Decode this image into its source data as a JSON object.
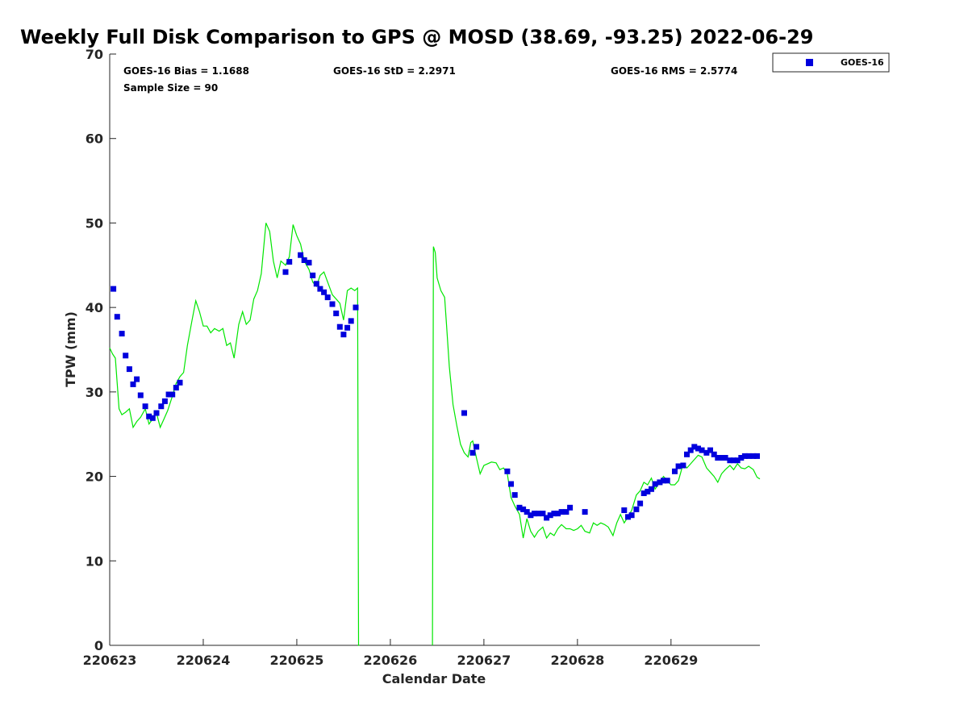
{
  "chart_data": {
    "type": "scatter",
    "title": "Weekly Full Disk Comparison to GPS @ MOSD (38.69, -93.25) 2022-06-29",
    "xlabel": "Calendar Date",
    "ylabel": "TPW (mm)",
    "xlim": [
      0,
      6.95
    ],
    "ylim": [
      0,
      70
    ],
    "x_ticks": [
      {
        "value": 0,
        "label": "220623"
      },
      {
        "value": 1,
        "label": "220624"
      },
      {
        "value": 2,
        "label": "220625"
      },
      {
        "value": 3,
        "label": "220626"
      },
      {
        "value": 4,
        "label": "220627"
      },
      {
        "value": 5,
        "label": "220628"
      },
      {
        "value": 6,
        "label": "220629"
      }
    ],
    "y_ticks": [
      0,
      10,
      20,
      30,
      40,
      50,
      60,
      70
    ],
    "x_units": "days since 220623",
    "grid": false,
    "legend_position": "top-right-outside",
    "stats": {
      "bias": "GOES-16 Bias = 1.1688",
      "std": "GOES-16 StD = 2.2971",
      "rms": "GOES-16 RMS = 2.5774",
      "sample": "Sample Size = 90"
    },
    "series": [
      {
        "name": "GOES-16",
        "kind": "scatter",
        "color": "#0000dd",
        "points": [
          [
            0.04,
            42.2
          ],
          [
            0.08,
            38.9
          ],
          [
            0.13,
            36.9
          ],
          [
            0.17,
            34.3
          ],
          [
            0.21,
            32.7
          ],
          [
            0.25,
            30.9
          ],
          [
            0.29,
            31.5
          ],
          [
            0.33,
            29.6
          ],
          [
            0.38,
            28.3
          ],
          [
            0.42,
            27.1
          ],
          [
            0.46,
            26.9
          ],
          [
            0.5,
            27.5
          ],
          [
            0.55,
            28.3
          ],
          [
            0.59,
            28.9
          ],
          [
            0.63,
            29.7
          ],
          [
            0.67,
            29.7
          ],
          [
            0.71,
            30.5
          ],
          [
            0.75,
            31.1
          ],
          [
            1.88,
            44.2
          ],
          [
            1.92,
            45.4
          ],
          [
            2.04,
            46.2
          ],
          [
            2.08,
            45.6
          ],
          [
            2.13,
            45.3
          ],
          [
            2.17,
            43.8
          ],
          [
            2.21,
            42.8
          ],
          [
            2.25,
            42.2
          ],
          [
            2.29,
            41.8
          ],
          [
            2.33,
            41.2
          ],
          [
            2.38,
            40.4
          ],
          [
            2.42,
            39.3
          ],
          [
            2.46,
            37.7
          ],
          [
            2.5,
            36.8
          ],
          [
            2.54,
            37.6
          ],
          [
            2.58,
            38.4
          ],
          [
            2.63,
            40.0
          ],
          [
            3.79,
            27.5
          ],
          [
            3.88,
            22.8
          ],
          [
            3.92,
            23.5
          ],
          [
            4.25,
            20.6
          ],
          [
            4.29,
            19.1
          ],
          [
            4.33,
            17.8
          ],
          [
            4.38,
            16.3
          ],
          [
            4.42,
            16.1
          ],
          [
            4.46,
            15.8
          ],
          [
            4.5,
            15.4
          ],
          [
            4.54,
            15.6
          ],
          [
            4.58,
            15.6
          ],
          [
            4.63,
            15.6
          ],
          [
            4.67,
            15.1
          ],
          [
            4.71,
            15.4
          ],
          [
            4.75,
            15.6
          ],
          [
            4.79,
            15.6
          ],
          [
            4.83,
            15.8
          ],
          [
            4.88,
            15.8
          ],
          [
            4.92,
            16.3
          ],
          [
            5.08,
            15.8
          ],
          [
            5.5,
            16.0
          ],
          [
            5.54,
            15.2
          ],
          [
            5.58,
            15.4
          ],
          [
            5.63,
            16.1
          ],
          [
            5.67,
            16.8
          ],
          [
            5.71,
            18.0
          ],
          [
            5.75,
            18.2
          ],
          [
            5.79,
            18.5
          ],
          [
            5.83,
            19.1
          ],
          [
            5.88,
            19.3
          ],
          [
            5.92,
            19.5
          ],
          [
            5.96,
            19.5
          ],
          [
            6.04,
            20.6
          ],
          [
            6.08,
            21.2
          ],
          [
            6.13,
            21.3
          ],
          [
            6.17,
            22.6
          ],
          [
            6.21,
            23.1
          ],
          [
            6.25,
            23.5
          ],
          [
            6.29,
            23.3
          ],
          [
            6.33,
            23.1
          ],
          [
            6.38,
            22.8
          ],
          [
            6.42,
            23.1
          ],
          [
            6.46,
            22.6
          ],
          [
            6.5,
            22.2
          ],
          [
            6.54,
            22.2
          ],
          [
            6.58,
            22.2
          ],
          [
            6.63,
            21.9
          ],
          [
            6.67,
            21.9
          ],
          [
            6.71,
            21.9
          ],
          [
            6.75,
            22.2
          ],
          [
            6.79,
            22.4
          ],
          [
            6.83,
            22.4
          ],
          [
            6.88,
            22.4
          ],
          [
            6.92,
            22.4
          ]
        ]
      },
      {
        "name": "",
        "kind": "line",
        "color": "#00e600",
        "points": [
          [
            0.0,
            35.2
          ],
          [
            0.03,
            34.5
          ],
          [
            0.06,
            34.0
          ],
          [
            0.08,
            31.0
          ],
          [
            0.1,
            28.0
          ],
          [
            0.13,
            27.3
          ],
          [
            0.17,
            27.6
          ],
          [
            0.21,
            28.0
          ],
          [
            0.25,
            25.8
          ],
          [
            0.29,
            26.5
          ],
          [
            0.33,
            27.0
          ],
          [
            0.38,
            28.0
          ],
          [
            0.42,
            26.2
          ],
          [
            0.46,
            26.8
          ],
          [
            0.5,
            27.5
          ],
          [
            0.54,
            25.8
          ],
          [
            0.58,
            26.8
          ],
          [
            0.62,
            27.8
          ],
          [
            0.67,
            29.5
          ],
          [
            0.71,
            31.0
          ],
          [
            0.75,
            31.8
          ],
          [
            0.79,
            32.3
          ],
          [
            0.83,
            35.5
          ],
          [
            0.88,
            38.5
          ],
          [
            0.92,
            40.8
          ],
          [
            0.96,
            39.5
          ],
          [
            1.0,
            37.8
          ],
          [
            1.04,
            37.8
          ],
          [
            1.08,
            37.0
          ],
          [
            1.12,
            37.5
          ],
          [
            1.17,
            37.2
          ],
          [
            1.21,
            37.5
          ],
          [
            1.25,
            35.5
          ],
          [
            1.29,
            35.8
          ],
          [
            1.33,
            34.0
          ],
          [
            1.38,
            38.0
          ],
          [
            1.42,
            39.5
          ],
          [
            1.46,
            38.0
          ],
          [
            1.5,
            38.5
          ],
          [
            1.54,
            41.0
          ],
          [
            1.58,
            42.0
          ],
          [
            1.62,
            44.0
          ],
          [
            1.67,
            50.0
          ],
          [
            1.71,
            49.0
          ],
          [
            1.75,
            45.5
          ],
          [
            1.79,
            43.5
          ],
          [
            1.83,
            45.5
          ],
          [
            1.88,
            45.0
          ],
          [
            1.92,
            46.0
          ],
          [
            1.96,
            49.8
          ],
          [
            2.0,
            48.5
          ],
          [
            2.04,
            47.5
          ],
          [
            2.08,
            45.5
          ],
          [
            2.13,
            44.5
          ],
          [
            2.17,
            43.0
          ],
          [
            2.21,
            42.5
          ],
          [
            2.25,
            43.8
          ],
          [
            2.29,
            44.2
          ],
          [
            2.33,
            43.0
          ],
          [
            2.38,
            41.5
          ],
          [
            2.42,
            41.0
          ],
          [
            2.46,
            40.5
          ],
          [
            2.5,
            38.5
          ],
          [
            2.54,
            42.0
          ],
          [
            2.58,
            42.3
          ],
          [
            2.62,
            42.0
          ],
          [
            2.65,
            42.3
          ],
          [
            2.66,
            0.0
          ],
          [
            2.67,
            0.0
          ]
        ],
        "segments": [
          [
            [
              3.45,
              0.0
            ],
            [
              3.46,
              47.2
            ],
            [
              3.48,
              46.5
            ],
            [
              3.5,
              43.5
            ],
            [
              3.54,
              42.0
            ],
            [
              3.58,
              41.2
            ],
            [
              3.6,
              38.0
            ],
            [
              3.63,
              33.0
            ],
            [
              3.67,
              28.5
            ],
            [
              3.71,
              26.0
            ],
            [
              3.75,
              23.8
            ],
            [
              3.79,
              22.8
            ],
            [
              3.83,
              22.3
            ],
            [
              3.86,
              24.0
            ],
            [
              3.88,
              24.2
            ],
            [
              3.92,
              22.2
            ],
            [
              3.96,
              20.3
            ],
            [
              4.0,
              21.3
            ],
            [
              4.04,
              21.5
            ],
            [
              4.08,
              21.7
            ],
            [
              4.13,
              21.6
            ],
            [
              4.17,
              20.8
            ],
            [
              4.21,
              21.0
            ],
            [
              4.25,
              20.3
            ],
            [
              4.29,
              17.5
            ],
            [
              4.33,
              16.5
            ],
            [
              4.38,
              15.5
            ],
            [
              4.42,
              12.7
            ],
            [
              4.46,
              15.0
            ],
            [
              4.5,
              13.5
            ],
            [
              4.54,
              12.8
            ],
            [
              4.58,
              13.5
            ],
            [
              4.63,
              14.0
            ],
            [
              4.67,
              12.7
            ],
            [
              4.71,
              13.3
            ],
            [
              4.75,
              13.0
            ],
            [
              4.79,
              13.8
            ],
            [
              4.83,
              14.3
            ],
            [
              4.88,
              13.8
            ],
            [
              4.92,
              13.8
            ],
            [
              4.96,
              13.6
            ],
            [
              5.0,
              13.8
            ],
            [
              5.04,
              14.2
            ],
            [
              5.08,
              13.5
            ],
            [
              5.13,
              13.3
            ],
            [
              5.17,
              14.5
            ],
            [
              5.21,
              14.2
            ],
            [
              5.25,
              14.5
            ],
            [
              5.29,
              14.3
            ],
            [
              5.33,
              14.0
            ],
            [
              5.38,
              13.0
            ],
            [
              5.42,
              14.5
            ],
            [
              5.46,
              15.5
            ],
            [
              5.5,
              14.5
            ],
            [
              5.54,
              15.2
            ],
            [
              5.58,
              16.0
            ],
            [
              5.63,
              17.8
            ],
            [
              5.67,
              18.3
            ],
            [
              5.71,
              19.3
            ],
            [
              5.75,
              19.0
            ],
            [
              5.79,
              19.8
            ],
            [
              5.83,
              18.5
            ],
            [
              5.88,
              19.3
            ],
            [
              5.92,
              20.0
            ],
            [
              5.96,
              19.5
            ],
            [
              6.0,
              19.0
            ],
            [
              6.04,
              19.0
            ],
            [
              6.08,
              19.5
            ],
            [
              6.13,
              21.5
            ],
            [
              6.17,
              21.0
            ],
            [
              6.21,
              21.5
            ],
            [
              6.25,
              22.0
            ],
            [
              6.29,
              22.5
            ],
            [
              6.33,
              22.3
            ],
            [
              6.38,
              21.0
            ],
            [
              6.42,
              20.5
            ],
            [
              6.46,
              20.0
            ],
            [
              6.5,
              19.3
            ],
            [
              6.54,
              20.3
            ],
            [
              6.58,
              20.8
            ],
            [
              6.63,
              21.3
            ],
            [
              6.67,
              20.8
            ],
            [
              6.71,
              21.5
            ],
            [
              6.75,
              21.0
            ],
            [
              6.79,
              20.9
            ],
            [
              6.83,
              21.2
            ],
            [
              6.88,
              20.8
            ],
            [
              6.92,
              19.9
            ],
            [
              6.95,
              19.7
            ]
          ]
        ]
      }
    ]
  }
}
